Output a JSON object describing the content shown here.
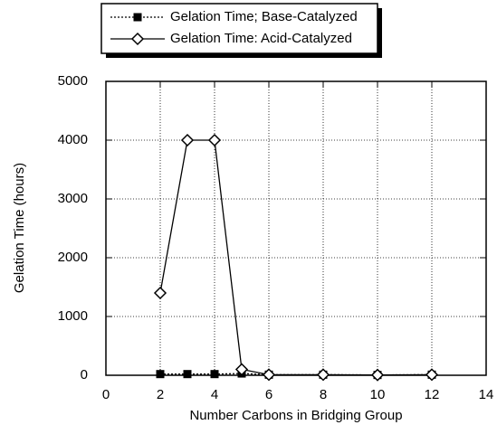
{
  "chart_data": {
    "type": "line",
    "x_label": "Number Carbons in Bridging Group",
    "y_label": "Gelation Time (hours)",
    "x": [
      2,
      3,
      4,
      5,
      6,
      8,
      10,
      12
    ],
    "series": [
      {
        "name": "Gelation Time; Base-Catalyzed",
        "color": "#000000",
        "linestyle": "dotted",
        "marker": "square",
        "values": [
          20,
          20,
          20,
          30,
          10,
          10,
          5,
          10
        ]
      },
      {
        "name": "Gelation Time: Acid-Catalyzed",
        "color": "#000000",
        "linestyle": "solid",
        "marker": "diamond",
        "values": [
          1400,
          4000,
          4000,
          100,
          10,
          10,
          5,
          10
        ]
      }
    ],
    "xlim": [
      0,
      14
    ],
    "xticks": [
      0,
      2,
      4,
      6,
      8,
      10,
      12,
      14
    ],
    "ylim": [
      0,
      5000
    ],
    "yticks": [
      0,
      1000,
      2000,
      3000,
      4000,
      5000
    ],
    "grid": true
  }
}
